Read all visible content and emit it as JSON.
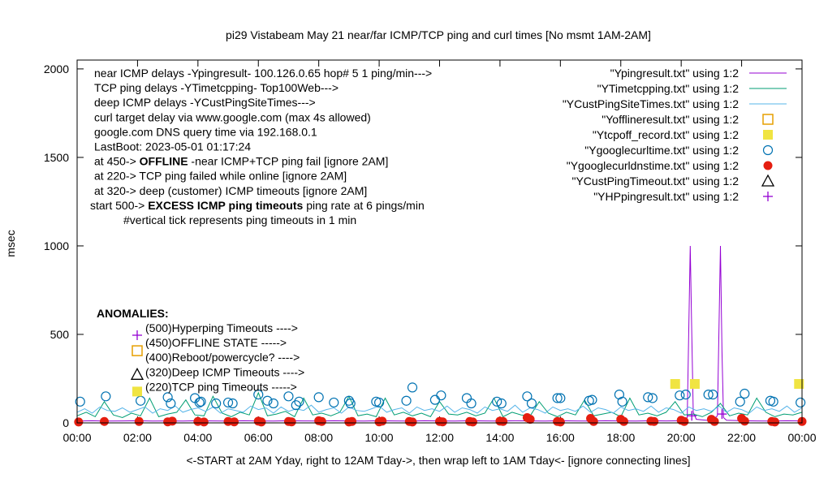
{
  "chart_data": {
    "type": "line",
    "title": "pi29 Vistabeam May 21  near/far ICMP/TCP ping and curl times [No msmt 1AM-2AM]",
    "xlabel": "<-START at 2AM Yday, right to 12AM Tday->, then wrap left to 1AM Tday<- [ignore connecting lines]",
    "ylabel": "msec",
    "xlim": [
      0,
      24
    ],
    "ylim": [
      0,
      2050
    ],
    "grid": false,
    "legend_position": "top-right",
    "x_ticks": [
      "00:00",
      "02:00",
      "04:00",
      "06:00",
      "08:00",
      "10:00",
      "12:00",
      "14:00",
      "16:00",
      "18:00",
      "20:00",
      "22:00",
      "00:00"
    ],
    "y_ticks": [
      "0",
      "500",
      "1000",
      "1500",
      "2000"
    ],
    "y_tick_values": [
      0,
      500,
      1000,
      1500,
      2000
    ],
    "notes": [
      {
        "parts": [
          {
            "text": "near ICMP delays -Ypingresult- 100.126.0.65 hop# 5 1 ping/min--->",
            "bold": false
          }
        ]
      },
      {
        "parts": [
          {
            "text": "TCP ping delays -YTimetcpping- Top100Web--->",
            "bold": false
          }
        ]
      },
      {
        "parts": [
          {
            "text": "deep ICMP delays -YCustPingSiteTimes--->",
            "bold": false
          }
        ]
      },
      {
        "parts": [
          {
            "text": "curl target delay via www.google.com (max 4s allowed)",
            "bold": false
          }
        ]
      },
      {
        "parts": [
          {
            "text": "google.com DNS query time via 192.168.0.1",
            "bold": false
          }
        ]
      },
      {
        "parts": [
          {
            "text": "LastBoot: 2023-05-01 01:17:24",
            "bold": false
          }
        ]
      },
      {
        "parts": [
          {
            "text": "at 450-> ",
            "bold": false
          },
          {
            "text": "OFFLINE",
            "bold": true
          },
          {
            "text": " -near ICMP+TCP ping fail [ignore 2AM]",
            "bold": false
          }
        ]
      },
      {
        "parts": [
          {
            "text": "at 220-> TCP ping failed while online [ignore 2AM]",
            "bold": false
          }
        ]
      },
      {
        "parts": [
          {
            "text": "at 320-> deep (customer) ICMP timeouts [ignore 2AM]",
            "bold": false
          }
        ]
      },
      {
        "parts": [
          {
            "text": "start 500-> ",
            "bold": false
          },
          {
            "text": "EXCESS ICMP ping timeouts",
            "bold": true
          },
          {
            "text": "  ping rate at 6 pings/min",
            "bold": false
          }
        ]
      },
      {
        "parts": [
          {
            "text": "#vertical tick represents ping timeouts in 1 min",
            "bold": false
          }
        ]
      }
    ],
    "anomalies_title": "ANOMALIES:",
    "anomalies": [
      {
        "label": "(500)Hyperping Timeouts ---->",
        "marker": "plus",
        "color": "#9400d3"
      },
      {
        "label": "(450)OFFLINE STATE ----->",
        "marker": "open-square",
        "color": "#e69f00"
      },
      {
        "label": "(400)Reboot/powercycle? ---->",
        "marker": "none",
        "color": "#000000"
      },
      {
        "label": "(320)Deep ICMP Timeouts ---->",
        "marker": "open-triangle",
        "color": "#000000"
      },
      {
        "label": "(220)TCP ping Timeouts ----->",
        "marker": "filled-square",
        "color": "#f0e442"
      }
    ],
    "legend": [
      {
        "label": "\"Ypingresult.txt\" using 1:2",
        "marker": "line",
        "color": "#9400d3"
      },
      {
        "label": "\"YTimetcpping.txt\" using 1:2",
        "marker": "line",
        "color": "#009e73"
      },
      {
        "label": "\"YCustPingSiteTimes.txt\" using 1:2",
        "marker": "line",
        "color": "#56b4e9"
      },
      {
        "label": "\"Yofflineresult.txt\" using 1:2",
        "marker": "open-square",
        "color": "#e69f00"
      },
      {
        "label": "\"Ytcpoff_record.txt\" using 1:2",
        "marker": "filled-square",
        "color": "#f0e442"
      },
      {
        "label": "\"Ygooglecurltime.txt\" using 1:2",
        "marker": "open-circle",
        "color": "#0072b2"
      },
      {
        "label": "\"Ygooglecurldnstime.txt\" using 1:2",
        "marker": "filled-circle",
        "color": "#e51e10"
      },
      {
        "label": "\"YCustPingTimeout.txt\" using 1:2",
        "marker": "open-triangle",
        "color": "#000000"
      },
      {
        "label": "\"YHPpingresult.txt\" using 1:2",
        "marker": "plus",
        "color": "#9400d3"
      }
    ],
    "series": [
      {
        "name": "\"Ypingresult.txt\" using 1:2",
        "type": "line",
        "color": "#9400d3",
        "x": [
          0,
          0.5,
          1,
          1.5,
          2,
          2.5,
          3,
          3.5,
          4,
          4.5,
          5,
          5.5,
          6,
          6.5,
          7,
          7.5,
          8,
          8.5,
          9,
          9.5,
          10,
          10.5,
          11,
          11.5,
          12,
          12.5,
          13,
          13.5,
          14,
          14.5,
          15,
          15.5,
          16,
          16.5,
          17,
          17.5,
          18,
          18.5,
          19,
          19.5,
          20,
          20.2,
          20.3,
          20.35,
          20.4,
          20.5,
          21,
          21.2,
          21.3,
          21.35,
          21.4,
          21.5,
          22,
          22.5,
          23,
          23.5,
          24
        ],
        "y": [
          10,
          12,
          10,
          11,
          12,
          10,
          11,
          10,
          12,
          11,
          10,
          12,
          11,
          10,
          12,
          11,
          10,
          12,
          11,
          10,
          12,
          11,
          10,
          12,
          11,
          10,
          12,
          11,
          10,
          12,
          11,
          10,
          12,
          11,
          10,
          12,
          11,
          10,
          12,
          11,
          12,
          30,
          1000,
          500,
          60,
          20,
          12,
          40,
          1000,
          400,
          30,
          15,
          12,
          11,
          10,
          12,
          11
        ]
      },
      {
        "name": "\"YTimetcpping.txt\" using 1:2",
        "type": "line",
        "color": "#009e73",
        "x": [
          0,
          0.3,
          0.6,
          0.9,
          1.2,
          1.5,
          1.8,
          2.1,
          2.4,
          2.7,
          3,
          3.3,
          3.6,
          3.9,
          4.2,
          4.5,
          4.8,
          5.1,
          5.4,
          5.7,
          6,
          6.3,
          6.6,
          6.9,
          7.2,
          7.5,
          7.8,
          8.1,
          8.4,
          8.7,
          9,
          9.3,
          9.6,
          9.9,
          10.2,
          10.5,
          10.8,
          11.1,
          11.4,
          11.7,
          12,
          12.3,
          12.6,
          12.9,
          13.2,
          13.5,
          13.8,
          14.1,
          14.4,
          14.7,
          15,
          15.3,
          15.6,
          15.9,
          16.2,
          16.5,
          16.8,
          17.1,
          17.4,
          17.7,
          18,
          18.3,
          18.6,
          18.9,
          19.2,
          19.5,
          19.8,
          20.1,
          20.4,
          20.7,
          21,
          21.3,
          21.6,
          21.9,
          22.2,
          22.5,
          22.8,
          23.1,
          23.4,
          23.7,
          24
        ],
        "y": [
          40,
          60,
          35,
          120,
          45,
          30,
          55,
          40,
          140,
          35,
          50,
          60,
          130,
          45,
          40,
          150,
          55,
          35,
          60,
          45,
          170,
          40,
          50,
          65,
          35,
          140,
          45,
          55,
          40,
          60,
          150,
          40,
          50,
          35,
          140,
          45,
          60,
          40,
          55,
          35,
          120,
          50,
          45,
          60,
          40,
          55,
          140,
          35,
          60,
          45,
          40,
          120,
          55,
          35,
          60,
          45,
          130,
          40,
          50,
          60,
          35,
          140,
          45,
          55,
          40,
          60,
          120,
          45,
          50,
          35,
          60,
          110,
          40,
          55,
          45,
          140,
          60,
          35,
          50,
          45,
          60
        ]
      },
      {
        "name": "\"YCustPingSiteTimes.txt\" using 1:2",
        "type": "line",
        "color": "#56b4e9",
        "x": [
          0,
          0.25,
          0.5,
          0.75,
          1,
          1.25,
          1.5,
          1.75,
          2,
          2.25,
          2.5,
          2.75,
          3,
          3.25,
          3.5,
          3.75,
          4,
          4.25,
          4.5,
          4.75,
          5,
          5.25,
          5.5,
          5.75,
          6,
          6.25,
          6.5,
          6.75,
          7,
          7.25,
          7.5,
          7.75,
          8,
          8.25,
          8.5,
          8.75,
          9,
          9.25,
          9.5,
          9.75,
          10,
          10.25,
          10.5,
          10.75,
          11,
          11.25,
          11.5,
          11.75,
          12,
          12.25,
          12.5,
          12.75,
          13,
          13.25,
          13.5,
          13.75,
          14,
          14.25,
          14.5,
          14.75,
          15,
          15.25,
          15.5,
          15.75,
          16,
          16.25,
          16.5,
          16.75,
          17,
          17.25,
          17.5,
          17.75,
          18,
          18.25,
          18.5,
          18.75,
          19,
          19.25,
          19.5,
          19.75,
          20,
          20.25,
          20.5,
          20.75,
          21,
          21.25,
          21.5,
          21.75,
          22,
          22.25,
          22.5,
          22.75,
          23,
          23.25,
          23.5,
          23.75,
          24
        ],
        "y": [
          60,
          80,
          55,
          90,
          70,
          65,
          85,
          60,
          75,
          90,
          55,
          80,
          70,
          95,
          60,
          75,
          85,
          65,
          90,
          55,
          80,
          70,
          60,
          95,
          75,
          85,
          55,
          90,
          65,
          80,
          70,
          100,
          60,
          75,
          85,
          55,
          90,
          70,
          65,
          80,
          95,
          60,
          75,
          85,
          55,
          90,
          70,
          80,
          65,
          95,
          60,
          85,
          75,
          55,
          90,
          70,
          80,
          65,
          100,
          60,
          85,
          75,
          55,
          90,
          70,
          80,
          65,
          95,
          60,
          85,
          75,
          55,
          90,
          70,
          80,
          65,
          95,
          60,
          85,
          75,
          55,
          90,
          70,
          80,
          65,
          95,
          60,
          85,
          75,
          55,
          90,
          70,
          80,
          65,
          95,
          60,
          85
        ]
      },
      {
        "name": "\"Ytcpoff_record.txt\" using 1:2",
        "type": "filled-square",
        "color": "#f0e442",
        "x": [
          19.8,
          20.45,
          23.9
        ],
        "y": [
          220,
          220,
          220
        ]
      },
      {
        "name": "\"Ygooglecurltime.txt\" using 1:2",
        "type": "open-circle",
        "color": "#0072b2",
        "x": [
          0.1,
          0.95,
          2.1,
          3.0,
          3.1,
          3.9,
          4.05,
          4.1,
          4.6,
          5.0,
          5.15,
          6.0,
          6.3,
          6.5,
          7.0,
          7.25,
          7.35,
          8.0,
          8.5,
          9.0,
          9.05,
          9.9,
          10.0,
          10.9,
          11.1,
          11.85,
          12.05,
          12.9,
          13.05,
          13.9,
          14.05,
          14.9,
          15.05,
          15.9,
          16.0,
          16.95,
          17.05,
          17.95,
          18.05,
          18.9,
          19.05,
          19.95,
          20.15,
          20.9,
          21.05,
          21.95,
          22.1,
          22.95,
          23.05,
          23.95
        ],
        "y": [
          120,
          150,
          125,
          145,
          110,
          140,
          115,
          120,
          110,
          115,
          110,
          160,
          125,
          110,
          150,
          100,
          120,
          145,
          115,
          125,
          110,
          120,
          115,
          125,
          200,
          130,
          155,
          140,
          110,
          120,
          110,
          150,
          110,
          140,
          140,
          125,
          130,
          160,
          120,
          145,
          140,
          155,
          160,
          160,
          160,
          120,
          165,
          125,
          120,
          115
        ]
      },
      {
        "name": "\"Ygooglecurldnstime.txt\" using 1:2",
        "type": "filled-circle",
        "color": "#e51e10",
        "x": [
          0.05,
          0.9,
          2.05,
          3.0,
          3.15,
          4.0,
          4.2,
          5.0,
          5.2,
          6.0,
          6.1,
          7.0,
          7.1,
          8.0,
          8.1,
          9.0,
          9.1,
          10.0,
          10.1,
          11.0,
          11.1,
          12.0,
          12.1,
          13.0,
          13.1,
          14.0,
          14.1,
          14.9,
          15.0,
          15.9,
          16.0,
          17.0,
          17.1,
          18.0,
          18.1,
          19.0,
          19.1,
          20.0,
          20.1,
          21.0,
          21.1,
          22.0,
          22.1,
          23.0,
          23.1,
          24.0
        ],
        "y": [
          5,
          8,
          8,
          6,
          10,
          8,
          5,
          8,
          6,
          10,
          5,
          8,
          6,
          12,
          8,
          5,
          8,
          6,
          10,
          8,
          5,
          8,
          6,
          8,
          5,
          10,
          8,
          30,
          20,
          8,
          5,
          25,
          8,
          20,
          8,
          10,
          8,
          15,
          8,
          20,
          8,
          25,
          10,
          8,
          5,
          8
        ]
      },
      {
        "name": "\"YHPpingresult.txt\" using 1:2",
        "type": "plus",
        "color": "#9400d3",
        "x": [
          20.35,
          21.35
        ],
        "y": [
          40,
          50
        ]
      }
    ]
  }
}
